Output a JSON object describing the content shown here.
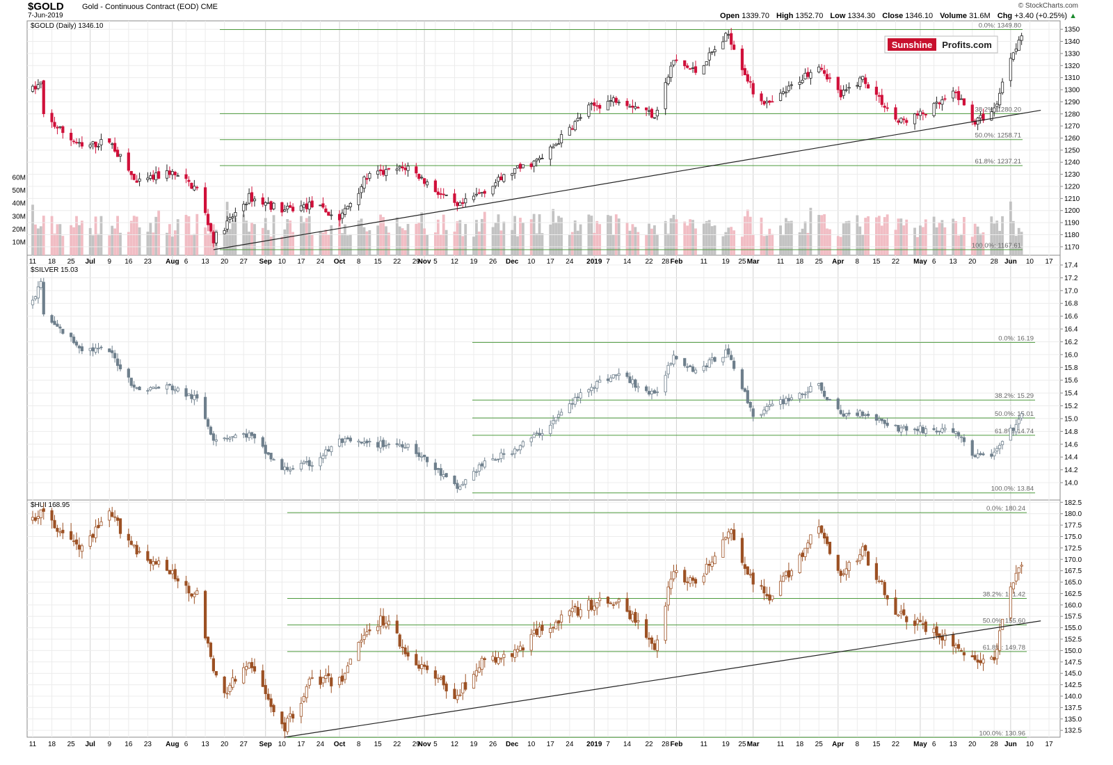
{
  "header": {
    "symbol": "$GOLD",
    "subtitle": "Gold - Continuous Contract (EOD)  CME",
    "date": "7-Jun-2019",
    "watermark": "© StockCharts.com",
    "open_label": "Open",
    "open": "1339.70",
    "high_label": "High",
    "high": "1352.70",
    "low_label": "Low",
    "low": "1334.30",
    "close_label": "Close",
    "close": "1346.10",
    "volume_label": "Volume",
    "volume": "31.6M",
    "chg_label": "Chg",
    "chg": "+3.40 (+0.25%)",
    "chg_arrow": "▲"
  },
  "logo": {
    "part1": "Sunshine",
    "part2": "Profits.com"
  },
  "colors": {
    "gold_down": "#d0103a",
    "gold_up": "#ffffff",
    "silver": "#6e7f8c",
    "hui": "#9c5124",
    "fib": "#4c9a3c",
    "trend": "#222222",
    "vol_up": "#bdbdbd",
    "vol_down": "#f0b6be"
  },
  "chart_data": [
    {
      "type": "candlestick",
      "title": "$GOLD (Daily) 1346.10",
      "ylim": [
        1163,
        1357
      ],
      "yticks": [
        1170,
        1180,
        1190,
        1200,
        1210,
        1220,
        1230,
        1240,
        1250,
        1260,
        1270,
        1280,
        1290,
        1300,
        1310,
        1320,
        1330,
        1340,
        1350
      ],
      "volume_ticks": [
        "10M",
        "20M",
        "30M",
        "40M",
        "50M",
        "60M"
      ],
      "fib_levels": [
        {
          "label": "0.0%: 1349.80",
          "value": 1349.8
        },
        {
          "label": "38.2%: 1280.20",
          "value": 1280.2
        },
        {
          "label": "50.0%: 1258.71",
          "value": 1258.71
        },
        {
          "label": "61.8%: 1237.21",
          "value": 1237.21
        },
        {
          "label": "100.0%: 1167.61",
          "value": 1167.61
        }
      ],
      "trendline": [
        {
          "date": "2018-08-16",
          "value": 1167.6
        },
        {
          "date": "2019-06-14",
          "value": 1283
        }
      ],
      "anchors": [
        {
          "date": "2018-06-11",
          "value": 1300
        },
        {
          "date": "2018-06-14",
          "value": 1305
        },
        {
          "date": "2018-06-15",
          "value": 1278
        },
        {
          "date": "2018-06-29",
          "value": 1252
        },
        {
          "date": "2018-07-09",
          "value": 1258
        },
        {
          "date": "2018-07-19",
          "value": 1222
        },
        {
          "date": "2018-07-31",
          "value": 1232
        },
        {
          "date": "2018-08-10",
          "value": 1218
        },
        {
          "date": "2018-08-16",
          "value": 1176
        },
        {
          "date": "2018-08-29",
          "value": 1211
        },
        {
          "date": "2018-09-11",
          "value": 1200
        },
        {
          "date": "2018-09-21",
          "value": 1205
        },
        {
          "date": "2018-10-01",
          "value": 1193
        },
        {
          "date": "2018-10-11",
          "value": 1228
        },
        {
          "date": "2018-10-26",
          "value": 1236
        },
        {
          "date": "2018-11-13",
          "value": 1202
        },
        {
          "date": "2018-12-03",
          "value": 1232
        },
        {
          "date": "2018-12-14",
          "value": 1243
        },
        {
          "date": "2018-12-31",
          "value": 1285
        },
        {
          "date": "2019-01-11",
          "value": 1293
        },
        {
          "date": "2019-01-24",
          "value": 1279
        },
        {
          "date": "2019-01-31",
          "value": 1324
        },
        {
          "date": "2019-02-08",
          "value": 1315
        },
        {
          "date": "2019-02-20",
          "value": 1346
        },
        {
          "date": "2019-03-01",
          "value": 1298
        },
        {
          "date": "2019-03-07",
          "value": 1287
        },
        {
          "date": "2019-03-25",
          "value": 1322
        },
        {
          "date": "2019-04-02",
          "value": 1295
        },
        {
          "date": "2019-04-10",
          "value": 1310
        },
        {
          "date": "2019-04-23",
          "value": 1273
        },
        {
          "date": "2019-05-03",
          "value": 1281
        },
        {
          "date": "2019-05-14",
          "value": 1297
        },
        {
          "date": "2019-05-21",
          "value": 1273
        },
        {
          "date": "2019-05-28",
          "value": 1283
        },
        {
          "date": "2019-06-03",
          "value": 1328
        },
        {
          "date": "2019-06-07",
          "value": 1346
        }
      ]
    },
    {
      "type": "candlestick",
      "title": "$SILVER 15.03",
      "ylim": [
        13.75,
        17.4
      ],
      "yticks": [
        14.0,
        14.2,
        14.4,
        14.6,
        14.8,
        15.0,
        15.2,
        15.4,
        15.6,
        15.8,
        16.0,
        16.2,
        16.4,
        16.6,
        16.8,
        17.0,
        17.2,
        17.4
      ],
      "fib_levels": [
        {
          "label": "0.0%: 16.19",
          "value": 16.19
        },
        {
          "label": "38.2%: 15.29",
          "value": 15.29
        },
        {
          "label": "50.0%: 15.01",
          "value": 15.01
        },
        {
          "label": "61.8%: 14.74",
          "value": 14.74
        },
        {
          "label": "100.0%: 13.84",
          "value": 13.84
        }
      ],
      "anchors": [
        {
          "date": "2018-06-11",
          "value": 16.8
        },
        {
          "date": "2018-06-14",
          "value": 17.15
        },
        {
          "date": "2018-06-15",
          "value": 16.6
        },
        {
          "date": "2018-06-29",
          "value": 16.1
        },
        {
          "date": "2018-07-09",
          "value": 16.05
        },
        {
          "date": "2018-07-19",
          "value": 15.45
        },
        {
          "date": "2018-07-31",
          "value": 15.5
        },
        {
          "date": "2018-08-10",
          "value": 15.3
        },
        {
          "date": "2018-08-16",
          "value": 14.7
        },
        {
          "date": "2018-08-29",
          "value": 14.75
        },
        {
          "date": "2018-09-10",
          "value": 14.2
        },
        {
          "date": "2018-09-21",
          "value": 14.3
        },
        {
          "date": "2018-10-01",
          "value": 14.65
        },
        {
          "date": "2018-10-11",
          "value": 14.6
        },
        {
          "date": "2018-10-26",
          "value": 14.6
        },
        {
          "date": "2018-11-13",
          "value": 13.9
        },
        {
          "date": "2018-11-21",
          "value": 14.25
        },
        {
          "date": "2018-12-03",
          "value": 14.5
        },
        {
          "date": "2018-12-14",
          "value": 14.8
        },
        {
          "date": "2018-12-31",
          "value": 15.5
        },
        {
          "date": "2019-01-11",
          "value": 15.7
        },
        {
          "date": "2019-01-24",
          "value": 15.35
        },
        {
          "date": "2019-01-31",
          "value": 16.0
        },
        {
          "date": "2019-02-08",
          "value": 15.75
        },
        {
          "date": "2019-02-20",
          "value": 16.05
        },
        {
          "date": "2019-03-01",
          "value": 15.05
        },
        {
          "date": "2019-03-13",
          "value": 15.3
        },
        {
          "date": "2019-03-25",
          "value": 15.5
        },
        {
          "date": "2019-04-02",
          "value": 15.05
        },
        {
          "date": "2019-04-10",
          "value": 15.1
        },
        {
          "date": "2019-04-23",
          "value": 14.85
        },
        {
          "date": "2019-05-14",
          "value": 14.8
        },
        {
          "date": "2019-05-21",
          "value": 14.4
        },
        {
          "date": "2019-05-28",
          "value": 14.45
        },
        {
          "date": "2019-06-07",
          "value": 15.03
        }
      ]
    },
    {
      "type": "candlestick",
      "title": "$HUI 168.95",
      "ylim": [
        131,
        183
      ],
      "yticks": [
        132.5,
        135.0,
        137.5,
        140.0,
        142.5,
        145.0,
        147.5,
        150.0,
        152.5,
        155.0,
        157.5,
        160.0,
        162.5,
        165.0,
        167.5,
        170.0,
        172.5,
        175.0,
        177.5,
        180.0,
        182.5
      ],
      "fib_levels": [
        {
          "label": "0.0%: 180.24",
          "value": 180.24
        },
        {
          "label": "38.2%: 161.42",
          "value": 161.42
        },
        {
          "label": "50.0%: 155.60",
          "value": 155.6
        },
        {
          "label": "61.8%: 149.78",
          "value": 149.78
        },
        {
          "label": "100.0%: 130.96",
          "value": 130.96
        }
      ],
      "trendline": [
        {
          "date": "2018-09-11",
          "value": 131
        },
        {
          "date": "2019-06-14",
          "value": 156.5
        }
      ],
      "anchors": [
        {
          "date": "2018-06-11",
          "value": 179
        },
        {
          "date": "2018-06-14",
          "value": 180
        },
        {
          "date": "2018-06-29",
          "value": 172
        },
        {
          "date": "2018-07-09",
          "value": 180
        },
        {
          "date": "2018-07-19",
          "value": 172
        },
        {
          "date": "2018-07-31",
          "value": 167
        },
        {
          "date": "2018-08-10",
          "value": 162
        },
        {
          "date": "2018-08-16",
          "value": 145
        },
        {
          "date": "2018-08-20",
          "value": 141
        },
        {
          "date": "2018-08-29",
          "value": 147
        },
        {
          "date": "2018-09-11",
          "value": 133
        },
        {
          "date": "2018-09-21",
          "value": 144
        },
        {
          "date": "2018-10-01",
          "value": 143
        },
        {
          "date": "2018-10-11",
          "value": 155
        },
        {
          "date": "2018-10-18",
          "value": 157
        },
        {
          "date": "2018-10-26",
          "value": 149
        },
        {
          "date": "2018-11-13",
          "value": 140
        },
        {
          "date": "2018-11-21",
          "value": 147
        },
        {
          "date": "2018-12-03",
          "value": 149
        },
        {
          "date": "2018-12-14",
          "value": 155
        },
        {
          "date": "2018-12-31",
          "value": 160
        },
        {
          "date": "2019-01-11",
          "value": 161
        },
        {
          "date": "2019-01-24",
          "value": 151
        },
        {
          "date": "2019-01-31",
          "value": 168
        },
        {
          "date": "2019-02-08",
          "value": 164
        },
        {
          "date": "2019-02-20",
          "value": 177
        },
        {
          "date": "2019-03-01",
          "value": 165
        },
        {
          "date": "2019-03-07",
          "value": 161
        },
        {
          "date": "2019-03-25",
          "value": 177
        },
        {
          "date": "2019-04-02",
          "value": 166
        },
        {
          "date": "2019-04-10",
          "value": 172
        },
        {
          "date": "2019-04-23",
          "value": 158
        },
        {
          "date": "2019-05-03",
          "value": 155
        },
        {
          "date": "2019-05-14",
          "value": 151
        },
        {
          "date": "2019-05-21",
          "value": 148
        },
        {
          "date": "2019-05-28",
          "value": 148
        },
        {
          "date": "2019-06-03",
          "value": 164
        },
        {
          "date": "2019-06-07",
          "value": 169
        }
      ]
    }
  ],
  "x_axis": {
    "ticks": [
      {
        "date": "2018-06-11",
        "label": "11"
      },
      {
        "date": "2018-06-18",
        "label": "18"
      },
      {
        "date": "2018-06-25",
        "label": "25"
      },
      {
        "date": "2018-07-02",
        "label": "Jul",
        "bold": true
      },
      {
        "date": "2018-07-09",
        "label": "9"
      },
      {
        "date": "2018-07-16",
        "label": "16"
      },
      {
        "date": "2018-07-23",
        "label": "23"
      },
      {
        "date": "2018-08-01",
        "label": "Aug",
        "bold": true
      },
      {
        "date": "2018-08-06",
        "label": "6"
      },
      {
        "date": "2018-08-13",
        "label": "13"
      },
      {
        "date": "2018-08-20",
        "label": "20"
      },
      {
        "date": "2018-08-27",
        "label": "27"
      },
      {
        "date": "2018-09-04",
        "label": "Sep",
        "bold": true
      },
      {
        "date": "2018-09-10",
        "label": "10"
      },
      {
        "date": "2018-09-17",
        "label": "17"
      },
      {
        "date": "2018-09-24",
        "label": "24"
      },
      {
        "date": "2018-10-01",
        "label": "Oct",
        "bold": true
      },
      {
        "date": "2018-10-08",
        "label": "8"
      },
      {
        "date": "2018-10-15",
        "label": "15"
      },
      {
        "date": "2018-10-22",
        "label": "22"
      },
      {
        "date": "2018-10-29",
        "label": "29"
      },
      {
        "date": "2018-11-01",
        "label": "Nov",
        "bold": true
      },
      {
        "date": "2018-11-05",
        "label": "5"
      },
      {
        "date": "2018-11-12",
        "label": "12"
      },
      {
        "date": "2018-11-19",
        "label": "19"
      },
      {
        "date": "2018-11-26",
        "label": "26"
      },
      {
        "date": "2018-12-03",
        "label": "Dec",
        "bold": true
      },
      {
        "date": "2018-12-10",
        "label": "10"
      },
      {
        "date": "2018-12-17",
        "label": "17"
      },
      {
        "date": "2018-12-24",
        "label": "24"
      },
      {
        "date": "2019-01-02",
        "label": "2019",
        "bold": true
      },
      {
        "date": "2019-01-07",
        "label": "7"
      },
      {
        "date": "2019-01-14",
        "label": "14"
      },
      {
        "date": "2019-01-22",
        "label": "22"
      },
      {
        "date": "2019-01-28",
        "label": "28"
      },
      {
        "date": "2019-02-01",
        "label": "Feb",
        "bold": true
      },
      {
        "date": "2019-02-11",
        "label": "11"
      },
      {
        "date": "2019-02-19",
        "label": "19"
      },
      {
        "date": "2019-02-25",
        "label": "25"
      },
      {
        "date": "2019-03-01",
        "label": "Mar",
        "bold": true
      },
      {
        "date": "2019-03-11",
        "label": "11"
      },
      {
        "date": "2019-03-18",
        "label": "18"
      },
      {
        "date": "2019-03-25",
        "label": "25"
      },
      {
        "date": "2019-04-01",
        "label": "Apr",
        "bold": true
      },
      {
        "date": "2019-04-08",
        "label": "8"
      },
      {
        "date": "2019-04-15",
        "label": "15"
      },
      {
        "date": "2019-04-22",
        "label": "22"
      },
      {
        "date": "2019-05-01",
        "label": "May",
        "bold": true
      },
      {
        "date": "2019-05-06",
        "label": "6"
      },
      {
        "date": "2019-05-13",
        "label": "13"
      },
      {
        "date": "2019-05-20",
        "label": "20"
      },
      {
        "date": "2019-05-28",
        "label": "28"
      },
      {
        "date": "2019-06-03",
        "label": "Jun",
        "bold": true
      },
      {
        "date": "2019-06-10",
        "label": "10"
      },
      {
        "date": "2019-06-17",
        "label": "17"
      }
    ]
  }
}
